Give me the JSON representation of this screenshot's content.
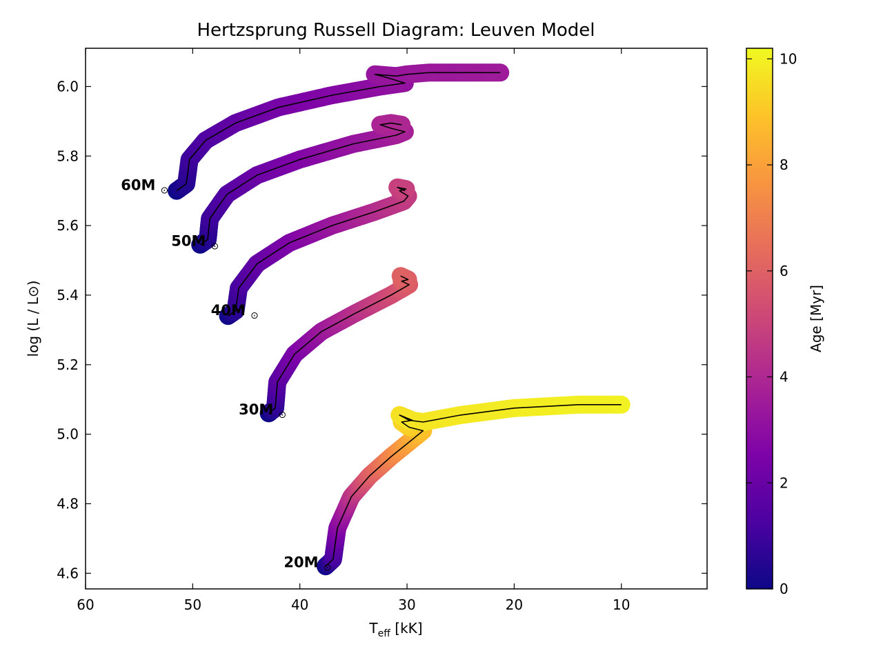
{
  "chart_data": {
    "type": "line",
    "title": "Hertzsprung Russell Diagram: Leuven Model",
    "xlabel": {
      "main": "T",
      "sub": "eff",
      "rest": " [kK]"
    },
    "ylabel": "log (L / L⊙)",
    "xlim": [
      60,
      2
    ],
    "ylim": [
      4.555,
      6.11
    ],
    "x_inverted": true,
    "xticks": [
      60,
      50,
      40,
      30,
      20,
      10
    ],
    "yticks": [
      4.6,
      4.8,
      5.0,
      5.2,
      5.4,
      5.6,
      5.8,
      6.0
    ],
    "xtick_labels": [
      "60",
      "50",
      "40",
      "30",
      "20",
      "10"
    ],
    "ytick_labels": [
      "4.6",
      "4.8",
      "5.0",
      "5.2",
      "5.4",
      "5.6",
      "5.8",
      "6.0"
    ],
    "colorbar": {
      "label": "Age [Myr]",
      "range": [
        0,
        10.2
      ],
      "ticks": [
        0,
        2,
        4,
        6,
        8,
        10
      ],
      "tick_labels": [
        "0",
        "2",
        "4",
        "6",
        "8",
        "10"
      ],
      "colormap": "plasma"
    },
    "series": [
      {
        "label": "60M",
        "label_symbol": "⊙",
        "label_anchor": [
          52.7,
          5.71
        ],
        "points": [
          {
            "t": 51.5,
            "l": 5.7,
            "age": 0.0
          },
          {
            "t": 50.6,
            "l": 5.72,
            "age": 0.4
          },
          {
            "t": 50.3,
            "l": 5.79,
            "age": 0.9
          },
          {
            "t": 48.8,
            "l": 5.845,
            "age": 1.3
          },
          {
            "t": 46.0,
            "l": 5.895,
            "age": 1.8
          },
          {
            "t": 42.0,
            "l": 5.94,
            "age": 2.3
          },
          {
            "t": 37.0,
            "l": 5.975,
            "age": 2.7
          },
          {
            "t": 32.5,
            "l": 6.0,
            "age": 3.0
          },
          {
            "t": 30.2,
            "l": 6.01,
            "age": 3.15
          },
          {
            "t": 31.8,
            "l": 6.025,
            "age": 3.2
          },
          {
            "t": 33.0,
            "l": 6.035,
            "age": 3.25
          },
          {
            "t": 31.0,
            "l": 6.03,
            "age": 3.3
          },
          {
            "t": 30.0,
            "l": 6.035,
            "age": 3.35
          },
          {
            "t": 28.0,
            "l": 6.04,
            "age": 3.4
          },
          {
            "t": 24.5,
            "l": 6.04,
            "age": 3.45
          },
          {
            "t": 21.3,
            "l": 6.04,
            "age": 3.5
          }
        ]
      },
      {
        "label": "50M",
        "label_symbol": "⊙",
        "label_anchor": [
          48.0,
          5.55
        ],
        "points": [
          {
            "t": 49.3,
            "l": 5.545,
            "age": 0.0
          },
          {
            "t": 48.6,
            "l": 5.56,
            "age": 0.4
          },
          {
            "t": 48.4,
            "l": 5.62,
            "age": 0.9
          },
          {
            "t": 46.8,
            "l": 5.69,
            "age": 1.4
          },
          {
            "t": 44.0,
            "l": 5.745,
            "age": 2.0
          },
          {
            "t": 40.0,
            "l": 5.79,
            "age": 2.6
          },
          {
            "t": 35.0,
            "l": 5.835,
            "age": 3.2
          },
          {
            "t": 31.0,
            "l": 5.86,
            "age": 3.6
          },
          {
            "t": 30.2,
            "l": 5.87,
            "age": 3.75
          },
          {
            "t": 31.5,
            "l": 5.88,
            "age": 3.8
          },
          {
            "t": 32.5,
            "l": 5.89,
            "age": 3.85
          },
          {
            "t": 31.5,
            "l": 5.895,
            "age": 3.9
          },
          {
            "t": 30.5,
            "l": 5.89,
            "age": 3.95
          }
        ]
      },
      {
        "label": "40M",
        "label_symbol": "⊙",
        "label_anchor": [
          44.3,
          5.35
        ],
        "points": [
          {
            "t": 46.7,
            "l": 5.34,
            "age": 0.0
          },
          {
            "t": 46.0,
            "l": 5.355,
            "age": 0.5
          },
          {
            "t": 45.7,
            "l": 5.42,
            "age": 1.1
          },
          {
            "t": 44.0,
            "l": 5.49,
            "age": 1.8
          },
          {
            "t": 41.0,
            "l": 5.55,
            "age": 2.5
          },
          {
            "t": 37.0,
            "l": 5.6,
            "age": 3.3
          },
          {
            "t": 33.0,
            "l": 5.64,
            "age": 4.1
          },
          {
            "t": 30.3,
            "l": 5.67,
            "age": 4.6
          },
          {
            "t": 29.9,
            "l": 5.685,
            "age": 4.7
          },
          {
            "t": 30.7,
            "l": 5.7,
            "age": 4.75
          },
          {
            "t": 30.1,
            "l": 5.705,
            "age": 4.8
          },
          {
            "t": 30.9,
            "l": 5.71,
            "age": 4.85
          },
          {
            "t": 30.2,
            "l": 5.7,
            "age": 4.9
          }
        ]
      },
      {
        "label": "30M",
        "label_symbol": "⊙",
        "label_anchor": [
          41.7,
          5.065
        ],
        "points": [
          {
            "t": 42.9,
            "l": 5.06,
            "age": 0.0
          },
          {
            "t": 42.3,
            "l": 5.075,
            "age": 0.6
          },
          {
            "t": 42.1,
            "l": 5.15,
            "age": 1.5
          },
          {
            "t": 40.5,
            "l": 5.23,
            "age": 2.4
          },
          {
            "t": 38.0,
            "l": 5.295,
            "age": 3.3
          },
          {
            "t": 35.0,
            "l": 5.345,
            "age": 4.2
          },
          {
            "t": 31.5,
            "l": 5.4,
            "age": 5.2
          },
          {
            "t": 29.8,
            "l": 5.43,
            "age": 5.8
          },
          {
            "t": 30.5,
            "l": 5.44,
            "age": 5.9
          },
          {
            "t": 29.9,
            "l": 5.445,
            "age": 5.95
          },
          {
            "t": 30.6,
            "l": 5.455,
            "age": 6.0
          }
        ]
      },
      {
        "label": "20M",
        "label_symbol": "⊙",
        "label_anchor": [
          37.5,
          4.625
        ],
        "points": [
          {
            "t": 37.6,
            "l": 4.62,
            "age": 0.0
          },
          {
            "t": 36.9,
            "l": 4.64,
            "age": 1.0
          },
          {
            "t": 36.5,
            "l": 4.73,
            "age": 2.6
          },
          {
            "t": 35.2,
            "l": 4.82,
            "age": 4.3
          },
          {
            "t": 33.5,
            "l": 4.88,
            "age": 5.8
          },
          {
            "t": 31.5,
            "l": 4.935,
            "age": 7.1
          },
          {
            "t": 29.5,
            "l": 4.985,
            "age": 8.2
          },
          {
            "t": 28.5,
            "l": 5.01,
            "age": 8.8
          },
          {
            "t": 29.8,
            "l": 5.02,
            "age": 9.1
          },
          {
            "t": 30.5,
            "l": 5.035,
            "age": 9.3
          },
          {
            "t": 29.5,
            "l": 5.04,
            "age": 9.5
          },
          {
            "t": 30.7,
            "l": 5.055,
            "age": 9.6
          },
          {
            "t": 29.8,
            "l": 5.04,
            "age": 9.7
          },
          {
            "t": 28.5,
            "l": 5.035,
            "age": 9.75
          },
          {
            "t": 25.0,
            "l": 5.055,
            "age": 9.8
          },
          {
            "t": 20.0,
            "l": 5.075,
            "age": 9.9
          },
          {
            "t": 14.0,
            "l": 5.085,
            "age": 9.97
          },
          {
            "t": 10.0,
            "l": 5.085,
            "age": 10.0
          }
        ]
      }
    ]
  }
}
